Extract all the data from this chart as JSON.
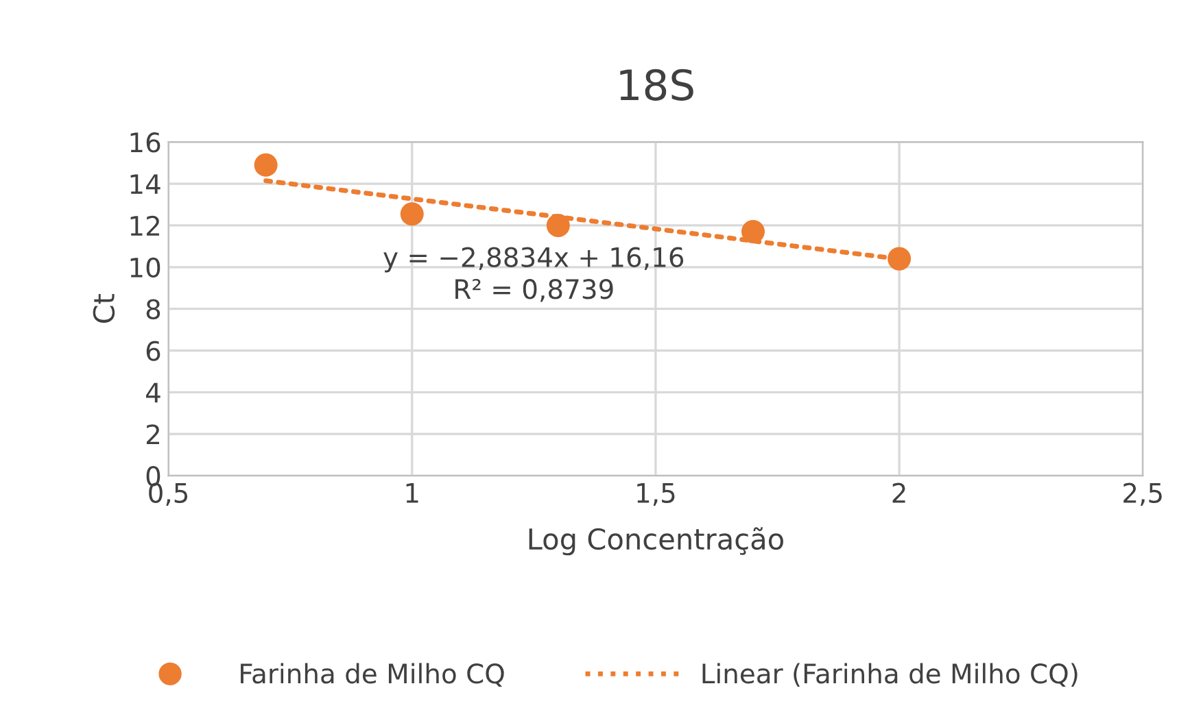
{
  "chart_data": {
    "type": "scatter",
    "title": "18S",
    "xlabel": "Log Concentração",
    "ylabel": "Ct",
    "series": [
      {
        "name": "Farinha de Milho CQ",
        "color": "#ed7d31",
        "marker": "circle",
        "x": [
          0.7,
          1.0,
          1.3,
          1.7,
          2.0
        ],
        "values": [
          14.9,
          12.55,
          12.0,
          11.7,
          10.4
        ]
      },
      {
        "name": "Linear (Farinha de Milho CQ)",
        "type": "line",
        "color": "#ed7d31",
        "line_style": "dotted",
        "x": [
          0.7,
          2.0
        ],
        "values": [
          14.14,
          10.39
        ]
      }
    ],
    "annotations": [
      "y = −2,8834x + 16,16\nR² = 0,8739"
    ],
    "xlim": [
      0.5,
      2.5
    ],
    "xticks": [
      {
        "value": 0.5,
        "label": "0,5"
      },
      1,
      {
        "value": 1.5,
        "label": "1,5"
      },
      2,
      {
        "value": 2.5,
        "label": "2,5"
      }
    ],
    "ylim": [
      0,
      16
    ],
    "yticks": [
      0,
      2,
      4,
      6,
      8,
      10,
      12,
      14,
      16
    ],
    "grid": true,
    "legend": "bottom"
  }
}
